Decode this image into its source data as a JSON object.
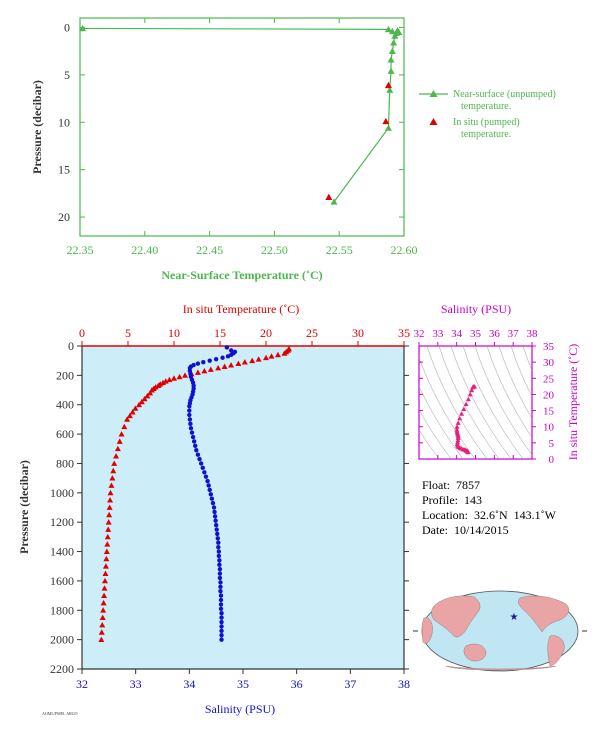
{
  "top_chart": {
    "xlabel": "Near-Surface Temperature (˚C)",
    "ylabel": "Pressure (decibar)",
    "x_ticks": [
      "22.35",
      "22.40",
      "22.45",
      "22.50",
      "22.55",
      "22.60"
    ],
    "y_ticks": [
      "0",
      "5",
      "10",
      "15",
      "20"
    ],
    "legend": {
      "unpumped": "Near-surface (unpumped) temperature.",
      "pumped": "In situ (pumped) temperature."
    },
    "colors": {
      "unpumped": "#4db84d",
      "pumped": "#e00000",
      "axis": "#4db84d"
    }
  },
  "bottom_chart": {
    "top_axis_label": "In situ Temperature (˚C)",
    "bottom_axis_label": "Salinity (PSU)",
    "ylabel": "Pressure (decibar)",
    "temp_ticks": [
      "0",
      "5",
      "10",
      "15",
      "20",
      "25",
      "30",
      "35"
    ],
    "sal_ticks": [
      "32",
      "33",
      "34",
      "35",
      "36",
      "37",
      "38"
    ],
    "p_ticks": [
      "0",
      "200",
      "400",
      "600",
      "800",
      "1000",
      "1200",
      "1400",
      "1600",
      "1800",
      "2000",
      "2200"
    ],
    "colors": {
      "temperature": "#e00000",
      "salinity": "#1010d0",
      "background": "#cdeef8",
      "axis": "#333333"
    }
  },
  "ts_diagram": {
    "top_axis_label": "Salinity (PSU)",
    "right_axis_label": "In situ Temperature (˚C)",
    "sal_ticks": [
      "32",
      "33",
      "34",
      "35",
      "36",
      "37",
      "38"
    ],
    "temp_ticks": [
      "0",
      "5",
      "10",
      "15",
      "20",
      "25",
      "30",
      "35"
    ],
    "colors": {
      "axis": "#cc00cc",
      "points": "#e8217a"
    }
  },
  "info": {
    "float_label": "Float:",
    "float_value": "7857",
    "profile_label": "Profile:",
    "profile_value": "143",
    "location_label": "Location:",
    "location_value": "32.6˚N  143.1˚W",
    "date_label": "Date:",
    "date_value": "10/14/2015"
  },
  "map": {
    "ocean": "#bfe6f2",
    "land": "#e9a5a5",
    "marker": "#1a1aa0"
  },
  "chart_data": [
    {
      "type": "line",
      "title": "",
      "xlabel": "Near-Surface Temperature (˚C)",
      "ylabel": "Pressure (decibar)",
      "xlim": [
        22.35,
        22.6
      ],
      "ylim": [
        22,
        -1
      ],
      "series": [
        {
          "name": "Near-surface (unpumped) temperature.",
          "marker": "triangle-up",
          "points": [
            [
              22.352,
              0.1
            ],
            [
              22.588,
              0.2
            ],
            [
              22.591,
              0.4
            ],
            [
              22.594,
              0.6
            ],
            [
              22.595,
              0.3
            ],
            [
              22.596,
              0.5
            ],
            [
              22.593,
              0.9
            ],
            [
              22.592,
              1.6
            ],
            [
              22.591,
              2.5
            ],
            [
              22.59,
              3.4
            ],
            [
              22.59,
              4.6
            ],
            [
              22.589,
              6.6
            ],
            [
              22.588,
              10.6
            ],
            [
              22.546,
              18.4
            ]
          ]
        },
        {
          "name": "In situ (pumped) temperature.",
          "marker": "triangle-up",
          "points": [
            [
              22.588,
              6.1
            ],
            [
              22.586,
              9.9
            ],
            [
              22.542,
              17.9
            ]
          ]
        }
      ]
    },
    {
      "type": "scatter",
      "title": "",
      "ylabel": "Pressure (decibar)",
      "ylim": [
        2200,
        0
      ],
      "series": [
        {
          "name": "In situ Temperature (˚C)",
          "axis": "top",
          "xlim": [
            0,
            35
          ],
          "marker": "triangle-up",
          "points": [
            [
              22.5,
              20
            ],
            [
              22.4,
              30
            ],
            [
              22.2,
              40
            ],
            [
              22.0,
              50
            ],
            [
              21.3,
              60
            ],
            [
              20.6,
              70
            ],
            [
              20.0,
              80
            ],
            [
              19.2,
              90
            ],
            [
              18.5,
              100
            ],
            [
              17.7,
              110
            ],
            [
              17.0,
              120
            ],
            [
              16.2,
              130
            ],
            [
              15.5,
              140
            ],
            [
              14.8,
              150
            ],
            [
              14.0,
              160
            ],
            [
              13.3,
              170
            ],
            [
              12.6,
              180
            ],
            [
              11.9,
              190
            ],
            [
              11.2,
              200
            ],
            [
              10.6,
              210
            ],
            [
              10.0,
              220
            ],
            [
              9.5,
              230
            ],
            [
              9.1,
              240
            ],
            [
              8.8,
              250
            ],
            [
              8.5,
              260
            ],
            [
              8.3,
              270
            ],
            [
              8.0,
              280
            ],
            [
              7.8,
              290
            ],
            [
              7.6,
              300
            ],
            [
              7.4,
              320
            ],
            [
              7.1,
              340
            ],
            [
              6.8,
              360
            ],
            [
              6.5,
              380
            ],
            [
              6.2,
              400
            ],
            [
              5.8,
              425
            ],
            [
              5.5,
              450
            ],
            [
              5.2,
              475
            ],
            [
              4.9,
              500
            ],
            [
              4.6,
              550
            ],
            [
              4.3,
              600
            ],
            [
              4.1,
              650
            ],
            [
              3.9,
              700
            ],
            [
              3.7,
              750
            ],
            [
              3.5,
              800
            ],
            [
              3.4,
              850
            ],
            [
              3.3,
              900
            ],
            [
              3.2,
              950
            ],
            [
              3.1,
              1000
            ],
            [
              3.05,
              1050
            ],
            [
              3.0,
              1100
            ],
            [
              2.95,
              1150
            ],
            [
              2.9,
              1200
            ],
            [
              2.85,
              1250
            ],
            [
              2.8,
              1300
            ],
            [
              2.75,
              1350
            ],
            [
              2.7,
              1400
            ],
            [
              2.65,
              1450
            ],
            [
              2.6,
              1500
            ],
            [
              2.55,
              1550
            ],
            [
              2.5,
              1600
            ],
            [
              2.45,
              1650
            ],
            [
              2.4,
              1700
            ],
            [
              2.35,
              1750
            ],
            [
              2.3,
              1800
            ],
            [
              2.25,
              1850
            ],
            [
              2.2,
              1900
            ],
            [
              2.15,
              1950
            ],
            [
              2.1,
              2000
            ]
          ]
        },
        {
          "name": "Salinity (PSU)",
          "axis": "bottom",
          "xlim": [
            32,
            38
          ],
          "marker": "circle",
          "points": [
            [
              34.7,
              10
            ],
            [
              34.78,
              30
            ],
            [
              34.85,
              40
            ],
            [
              34.82,
              50
            ],
            [
              34.78,
              60
            ],
            [
              34.72,
              70
            ],
            [
              34.62,
              80
            ],
            [
              34.5,
              90
            ],
            [
              34.38,
              100
            ],
            [
              34.26,
              110
            ],
            [
              34.16,
              120
            ],
            [
              34.08,
              130
            ],
            [
              34.03,
              140
            ],
            [
              34.01,
              150
            ],
            [
              34.01,
              170
            ],
            [
              34.02,
              190
            ],
            [
              34.03,
              210
            ],
            [
              34.05,
              230
            ],
            [
              34.07,
              250
            ],
            [
              34.08,
              270
            ],
            [
              34.08,
              290
            ],
            [
              34.07,
              310
            ],
            [
              34.06,
              330
            ],
            [
              34.04,
              350
            ],
            [
              34.02,
              370
            ],
            [
              34.01,
              390
            ],
            [
              34.0,
              410
            ],
            [
              34.0,
              440
            ],
            [
              34.0,
              470
            ],
            [
              34.01,
              500
            ],
            [
              34.02,
              530
            ],
            [
              34.03,
              560
            ],
            [
              34.05,
              590
            ],
            [
              34.07,
              620
            ],
            [
              34.09,
              650
            ],
            [
              34.11,
              680
            ],
            [
              34.13,
              710
            ],
            [
              34.16,
              740
            ],
            [
              34.19,
              770
            ],
            [
              34.22,
              800
            ],
            [
              34.25,
              830
            ],
            [
              34.28,
              860
            ],
            [
              34.31,
              890
            ],
            [
              34.34,
              920
            ],
            [
              34.36,
              950
            ],
            [
              34.38,
              980
            ],
            [
              34.4,
              1010
            ],
            [
              34.42,
              1040
            ],
            [
              34.44,
              1070
            ],
            [
              34.46,
              1100
            ],
            [
              34.47,
              1130
            ],
            [
              34.48,
              1160
            ],
            [
              34.49,
              1190
            ],
            [
              34.5,
              1220
            ],
            [
              34.51,
              1250
            ],
            [
              34.52,
              1280
            ],
            [
              34.53,
              1310
            ],
            [
              34.54,
              1340
            ],
            [
              34.54,
              1370
            ],
            [
              34.55,
              1400
            ],
            [
              34.55,
              1430
            ],
            [
              34.56,
              1460
            ],
            [
              34.56,
              1490
            ],
            [
              34.57,
              1520
            ],
            [
              34.57,
              1550
            ],
            [
              34.57,
              1580
            ],
            [
              34.58,
              1610
            ],
            [
              34.58,
              1640
            ],
            [
              34.58,
              1670
            ],
            [
              34.59,
              1700
            ],
            [
              34.59,
              1730
            ],
            [
              34.59,
              1760
            ],
            [
              34.59,
              1790
            ],
            [
              34.6,
              1820
            ],
            [
              34.6,
              1850
            ],
            [
              34.6,
              1880
            ],
            [
              34.6,
              1910
            ],
            [
              34.6,
              1940
            ],
            [
              34.6,
              1970
            ],
            [
              34.6,
              2000
            ]
          ]
        }
      ]
    },
    {
      "type": "scatter",
      "title": "",
      "xlabel": "Salinity (PSU)",
      "ylabel": "In situ Temperature (˚C)",
      "xlim": [
        32,
        38
      ],
      "ylim": [
        0,
        35
      ],
      "series": [
        {
          "name": "",
          "marker": "triangle-up",
          "points": [
            [
              34.9,
              22.4
            ],
            [
              34.95,
              22.4
            ],
            [
              34.85,
              22.2
            ],
            [
              34.8,
              21.3
            ],
            [
              34.72,
              20.0
            ],
            [
              34.62,
              18.5
            ],
            [
              34.5,
              17.0
            ],
            [
              34.38,
              15.5
            ],
            [
              34.26,
              14.0
            ],
            [
              34.16,
              12.6
            ],
            [
              34.08,
              11.2
            ],
            [
              34.02,
              10.0
            ],
            [
              34.01,
              9.1
            ],
            [
              34.02,
              8.5
            ],
            [
              34.04,
              8.0
            ],
            [
              34.06,
              7.6
            ],
            [
              34.08,
              7.1
            ],
            [
              34.08,
              6.5
            ],
            [
              34.07,
              5.8
            ],
            [
              34.05,
              5.2
            ],
            [
              34.03,
              4.6
            ],
            [
              34.05,
              4.1
            ],
            [
              34.1,
              3.7
            ],
            [
              34.18,
              3.4
            ],
            [
              34.26,
              3.2
            ],
            [
              34.34,
              3.0
            ],
            [
              34.41,
              2.9
            ],
            [
              34.47,
              2.75
            ],
            [
              34.52,
              2.6
            ],
            [
              34.55,
              2.5
            ],
            [
              34.58,
              2.35
            ],
            [
              34.6,
              2.2
            ],
            [
              34.6,
              2.1
            ]
          ]
        }
      ]
    }
  ]
}
